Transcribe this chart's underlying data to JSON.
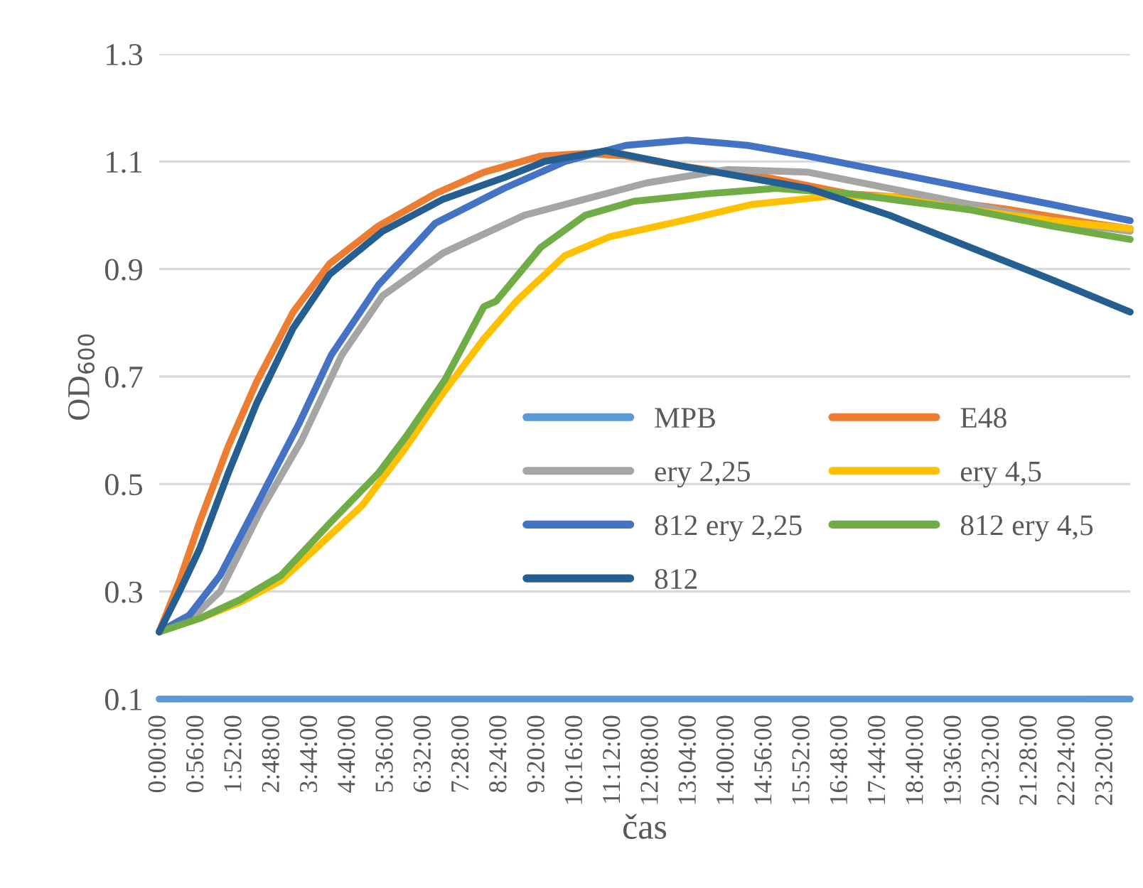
{
  "chart_data": {
    "type": "line",
    "xlabel": "čas",
    "ylabel": "OD$_{600}$",
    "xlim": [
      0,
      23.93
    ],
    "ylim": [
      0.1,
      1.3
    ],
    "yticks": [
      0.1,
      0.3,
      0.5,
      0.7,
      0.9,
      1.1,
      1.3
    ],
    "xticks": [
      {
        "value": 0,
        "label": "0:00:00"
      },
      {
        "value": 0.9333,
        "label": "0:56:00"
      },
      {
        "value": 1.8667,
        "label": "1:52:00"
      },
      {
        "value": 2.8,
        "label": "2:48:00"
      },
      {
        "value": 3.7333,
        "label": "3:44:00"
      },
      {
        "value": 4.6667,
        "label": "4:40:00"
      },
      {
        "value": 5.6,
        "label": "5:36:00"
      },
      {
        "value": 6.5333,
        "label": "6:32:00"
      },
      {
        "value": 7.4667,
        "label": "7:28:00"
      },
      {
        "value": 8.4,
        "label": "8:24:00"
      },
      {
        "value": 9.3333,
        "label": "9:20:00"
      },
      {
        "value": 10.2667,
        "label": "10:16:00"
      },
      {
        "value": 11.2,
        "label": "11:12:00"
      },
      {
        "value": 12.1333,
        "label": "12:08:00"
      },
      {
        "value": 13.0667,
        "label": "13:04:00"
      },
      {
        "value": 14,
        "label": "14:00:00"
      },
      {
        "value": 14.9333,
        "label": "14:56:00"
      },
      {
        "value": 15.8667,
        "label": "15:52:00"
      },
      {
        "value": 16.8,
        "label": "16:48:00"
      },
      {
        "value": 17.7333,
        "label": "17:44:00"
      },
      {
        "value": 18.6667,
        "label": "18:40:00"
      },
      {
        "value": 19.6,
        "label": "19:36:00"
      },
      {
        "value": 20.5333,
        "label": "20:32:00"
      },
      {
        "value": 21.4667,
        "label": "21:28:00"
      },
      {
        "value": 22.4,
        "label": "22:24:00"
      },
      {
        "value": 23.3333,
        "label": "23:20:00"
      }
    ],
    "grid": "y",
    "legend": "lower right",
    "marker": "none",
    "line_style": "solid",
    "series": [
      {
        "name": "MPB",
        "color": "#5b9bd5",
        "x": [
          0,
          6,
          12,
          18,
          23.93
        ],
        "values": [
          0.1,
          0.1,
          0.1,
          0.1,
          0.1
        ]
      },
      {
        "name": "E48",
        "color": "#ed7d31",
        "x": [
          0,
          0.5,
          1.0,
          1.7,
          2.4,
          3.3,
          4.2,
          5.4,
          6.8,
          8.0,
          9.4,
          10.5,
          11.5,
          13,
          15,
          17,
          19,
          21,
          23,
          23.93
        ],
        "values": [
          0.225,
          0.32,
          0.43,
          0.57,
          0.69,
          0.82,
          0.91,
          0.98,
          1.04,
          1.08,
          1.11,
          1.115,
          1.11,
          1.09,
          1.07,
          1.04,
          1.03,
          1.01,
          0.985,
          0.975
        ]
      },
      {
        "name": "ery 2,25",
        "color": "#a5a5a5",
        "x": [
          0,
          0.8,
          1.5,
          2.5,
          3.5,
          4.5,
          5.5,
          7,
          9,
          10.5,
          12,
          14,
          16,
          18,
          20,
          22,
          23.93
        ],
        "values": [
          0.225,
          0.25,
          0.3,
          0.45,
          0.58,
          0.74,
          0.85,
          0.93,
          1.0,
          1.03,
          1.06,
          1.085,
          1.08,
          1.05,
          1.02,
          0.99,
          0.97
        ]
      },
      {
        "name": "ery 4,5",
        "color": "#ffc000",
        "x": [
          0,
          1,
          2,
          3,
          4,
          5,
          6,
          7,
          8,
          8.8,
          10,
          11.1,
          12.9,
          14.6,
          16.5,
          18,
          20,
          22,
          23.93
        ],
        "values": [
          0.225,
          0.25,
          0.28,
          0.32,
          0.39,
          0.46,
          0.56,
          0.67,
          0.77,
          0.84,
          0.925,
          0.96,
          0.99,
          1.02,
          1.035,
          1.035,
          1.01,
          0.99,
          0.975
        ]
      },
      {
        "name": "812 ery 2,25",
        "color": "#4472c4",
        "x": [
          0,
          0.74,
          1.5,
          2.5,
          3.43,
          4.24,
          5.4,
          6.8,
          8.5,
          10,
          11.5,
          13,
          14.5,
          16,
          18,
          20,
          22,
          23.93
        ],
        "values": [
          0.225,
          0.256,
          0.33,
          0.475,
          0.61,
          0.74,
          0.87,
          0.985,
          1.05,
          1.1,
          1.13,
          1.14,
          1.13,
          1.11,
          1.08,
          1.05,
          1.02,
          0.99
        ]
      },
      {
        "name": "812 ery 4,5",
        "color": "#70ad47",
        "x": [
          0,
          1,
          2,
          3,
          4.24,
          5.4,
          6.1,
          7.05,
          8.0,
          8.3,
          9.4,
          10.5,
          11.7,
          13.5,
          15.2,
          17,
          20,
          22,
          23.93
        ],
        "values": [
          0.225,
          0.25,
          0.285,
          0.33,
          0.43,
          0.52,
          0.59,
          0.695,
          0.83,
          0.84,
          0.94,
          1.0,
          1.026,
          1.04,
          1.05,
          1.04,
          1.01,
          0.98,
          0.955
        ]
      },
      {
        "name": "812",
        "color": "#255e91",
        "x": [
          0,
          0.5,
          1,
          1.7,
          2.4,
          3.3,
          4.2,
          5.5,
          7,
          8.5,
          9.5,
          11,
          13,
          16,
          18,
          20,
          22,
          23.93
        ],
        "values": [
          0.225,
          0.3,
          0.38,
          0.52,
          0.65,
          0.79,
          0.89,
          0.97,
          1.03,
          1.07,
          1.1,
          1.12,
          1.09,
          1.05,
          1.0,
          0.94,
          0.88,
          0.82
        ]
      }
    ]
  }
}
